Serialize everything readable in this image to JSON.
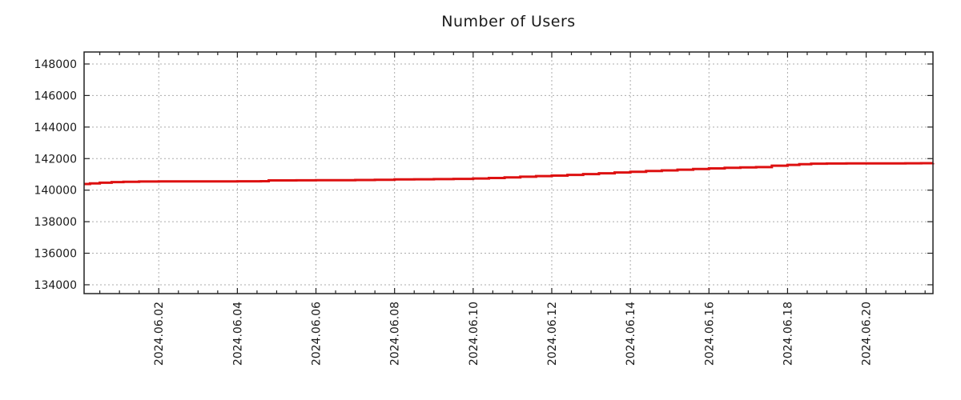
{
  "chart_data": {
    "type": "line",
    "title": "Number of Users",
    "legend_position": "none",
    "grid": {
      "show": true,
      "color": "#ababab",
      "style": "dashed"
    },
    "axis_color": "#222222",
    "x_axis": {
      "tick_labels": [
        "2024.06.02",
        "2024.06.04",
        "2024.06.06",
        "2024.06.08",
        "2024.06.10",
        "2024.06.12",
        "2024.06.14",
        "2024.06.16",
        "2024.06.18",
        "2024.06.20"
      ],
      "tick_day_offsets": [
        2,
        4,
        6,
        8,
        10,
        12,
        14,
        16,
        18,
        20
      ],
      "range_day_offsets": [
        0.1,
        21.7
      ],
      "minor_tick_interval_days": 0.5,
      "label_rotation_deg": -90
    },
    "y_axis": {
      "tick_labels": [
        "134000",
        "136000",
        "138000",
        "140000",
        "142000",
        "144000",
        "146000",
        "148000"
      ],
      "tick_values": [
        134000,
        136000,
        138000,
        140000,
        142000,
        144000,
        146000,
        148000
      ],
      "range": [
        133440,
        148760
      ]
    },
    "series": [
      {
        "name": "users",
        "color": "#dd1111",
        "points": [
          [
            0.1,
            140390
          ],
          [
            0.25,
            140430
          ],
          [
            0.5,
            140470
          ],
          [
            0.8,
            140510
          ],
          [
            1.1,
            140530
          ],
          [
            1.5,
            140545
          ],
          [
            2.0,
            140550
          ],
          [
            2.5,
            140550
          ],
          [
            3.0,
            140555
          ],
          [
            3.5,
            140555
          ],
          [
            4.0,
            140560
          ],
          [
            4.6,
            140565
          ],
          [
            4.8,
            140620
          ],
          [
            5.5,
            140625
          ],
          [
            6.0,
            140630
          ],
          [
            6.5,
            140635
          ],
          [
            7.0,
            140645
          ],
          [
            7.5,
            140655
          ],
          [
            8.0,
            140680
          ],
          [
            8.5,
            140690
          ],
          [
            9.0,
            140700
          ],
          [
            9.5,
            140715
          ],
          [
            10.0,
            140740
          ],
          [
            10.4,
            140770
          ],
          [
            10.8,
            140810
          ],
          [
            11.2,
            140850
          ],
          [
            11.6,
            140890
          ],
          [
            12.0,
            140920
          ],
          [
            12.4,
            140970
          ],
          [
            12.8,
            141020
          ],
          [
            13.2,
            141070
          ],
          [
            13.6,
            141120
          ],
          [
            14.0,
            141160
          ],
          [
            14.4,
            141210
          ],
          [
            14.8,
            141250
          ],
          [
            15.2,
            141300
          ],
          [
            15.6,
            141340
          ],
          [
            16.0,
            141380
          ],
          [
            16.4,
            141420
          ],
          [
            16.8,
            141445
          ],
          [
            17.2,
            141460
          ],
          [
            17.6,
            141550
          ],
          [
            18.0,
            141600
          ],
          [
            18.3,
            141650
          ],
          [
            18.6,
            141680
          ],
          [
            19.0,
            141690
          ],
          [
            19.5,
            141695
          ],
          [
            20.0,
            141700
          ],
          [
            20.5,
            141700
          ],
          [
            21.0,
            141705
          ],
          [
            21.4,
            141710
          ],
          [
            21.7,
            141720
          ]
        ]
      }
    ]
  }
}
